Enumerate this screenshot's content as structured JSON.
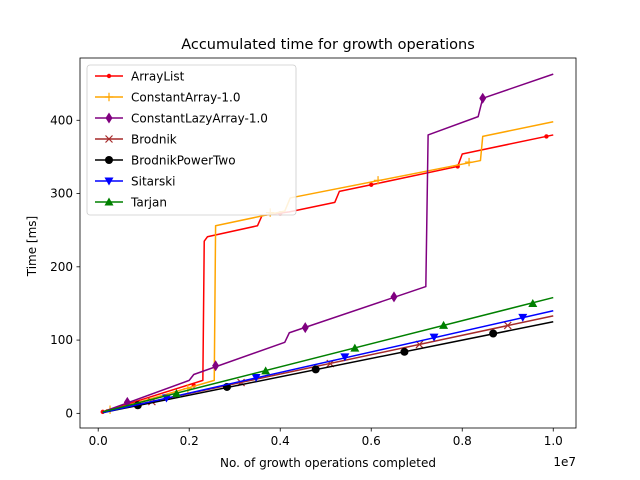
{
  "chart_data": {
    "type": "line",
    "title": "Accumulated time for growth operations",
    "xlabel": "No. of growth operations completed",
    "ylabel": "Time [ms]",
    "x_offset_label": "1e7",
    "xlim": [
      -400000,
      10500000
    ],
    "ylim": [
      -20,
      485
    ],
    "x_ticks": [
      0,
      2000000,
      4000000,
      6000000,
      8000000,
      10000000
    ],
    "x_tick_labels": [
      "0.0",
      "0.2",
      "0.4",
      "0.6",
      "0.8",
      "1.0"
    ],
    "y_ticks": [
      0,
      100,
      200,
      300,
      400
    ],
    "y_tick_labels": [
      "0",
      "100",
      "200",
      "300",
      "400"
    ],
    "grid": false,
    "legend_position": "top-left",
    "series": [
      {
        "name": "ArrayList",
        "color": "#ff0000",
        "marker": "point",
        "points": [
          [
            100000,
            2
          ],
          [
            2300000,
            45
          ],
          [
            2330000,
            235
          ],
          [
            2400000,
            241
          ],
          [
            3500000,
            256
          ],
          [
            3600000,
            270
          ],
          [
            4200000,
            275
          ],
          [
            5200000,
            288
          ],
          [
            5300000,
            303
          ],
          [
            6000000,
            312
          ],
          [
            7900000,
            337
          ],
          [
            8000000,
            354
          ],
          [
            10000000,
            380
          ]
        ],
        "markers": [
          [
            100000,
            2
          ],
          [
            2100000,
            38
          ],
          [
            4000000,
            273
          ],
          [
            6000000,
            312
          ],
          [
            7900000,
            337
          ],
          [
            9850000,
            378
          ]
        ]
      },
      {
        "name": "ConstantArray-1.0",
        "color": "#ffa500",
        "marker": "plus",
        "points": [
          [
            100000,
            1
          ],
          [
            2550000,
            45
          ],
          [
            2580000,
            256
          ],
          [
            4100000,
            276
          ],
          [
            4220000,
            294
          ],
          [
            8400000,
            345
          ],
          [
            8450000,
            378
          ],
          [
            10000000,
            398
          ]
        ],
        "markers": [
          [
            260000,
            5
          ],
          [
            1970000,
            34
          ],
          [
            3780000,
            274
          ],
          [
            6150000,
            318
          ],
          [
            8150000,
            343
          ]
        ]
      },
      {
        "name": "ConstantLazyArray-1.0",
        "color": "#800080",
        "marker": "diamond",
        "points": [
          [
            100000,
            2
          ],
          [
            2000000,
            45
          ],
          [
            2100000,
            53
          ],
          [
            4100000,
            97
          ],
          [
            4200000,
            110
          ],
          [
            7200000,
            173
          ],
          [
            7250000,
            380
          ],
          [
            8350000,
            405
          ],
          [
            8450000,
            430
          ],
          [
            10000000,
            463
          ]
        ],
        "markers": [
          [
            640000,
            15
          ],
          [
            2580000,
            65
          ],
          [
            4550000,
            117
          ],
          [
            6500000,
            159
          ],
          [
            8450000,
            430
          ]
        ]
      },
      {
        "name": "Brodnik",
        "color": "#a52a2a",
        "marker": "x",
        "points": [
          [
            100000,
            2
          ],
          [
            10000000,
            133
          ]
        ],
        "markers": [
          [
            1180000,
            16
          ],
          [
            3140000,
            42
          ],
          [
            5100000,
            68
          ],
          [
            7060000,
            94
          ],
          [
            9000000,
            120
          ]
        ]
      },
      {
        "name": "BrodnikPowerTwo",
        "color": "#000000",
        "marker": "circle",
        "points": [
          [
            100000,
            1
          ],
          [
            10000000,
            125
          ]
        ],
        "markers": [
          [
            870000,
            11
          ],
          [
            2830000,
            36
          ],
          [
            4780000,
            60
          ],
          [
            6730000,
            84
          ],
          [
            8680000,
            109
          ]
        ]
      },
      {
        "name": "Sitarski",
        "color": "#0000ff",
        "marker": "triangle-down",
        "points": [
          [
            100000,
            1
          ],
          [
            10000000,
            140
          ]
        ],
        "markers": [
          [
            1500000,
            21
          ],
          [
            3470000,
            49
          ],
          [
            5420000,
            77
          ],
          [
            7380000,
            104
          ],
          [
            9330000,
            131
          ]
        ]
      },
      {
        "name": "Tarjan",
        "color": "#008000",
        "marker": "triangle-up",
        "points": [
          [
            100000,
            2
          ],
          [
            10000000,
            158
          ]
        ],
        "markers": [
          [
            1720000,
            27
          ],
          [
            3680000,
            58
          ],
          [
            5640000,
            89
          ],
          [
            7590000,
            120
          ],
          [
            9550000,
            150
          ]
        ]
      }
    ]
  }
}
